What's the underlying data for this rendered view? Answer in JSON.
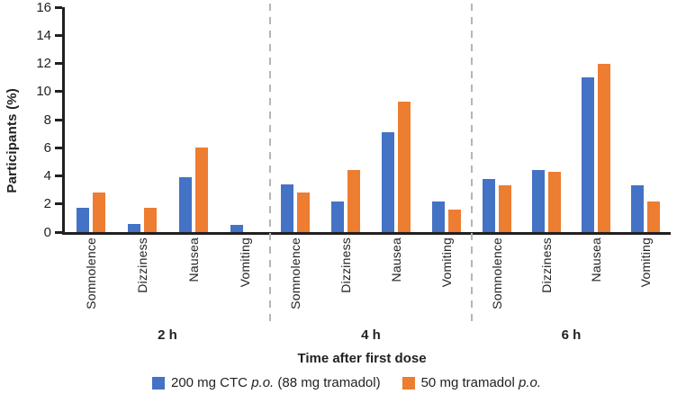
{
  "chart_data": {
    "type": "bar",
    "title": "",
    "ylabel": "Participants (%)",
    "xlabel": "Time after first dose",
    "ylim": [
      0,
      16
    ],
    "y_ticks": [
      0,
      2,
      4,
      6,
      8,
      10,
      12,
      14,
      16
    ],
    "grid": false,
    "legend_position": "bottom",
    "categories": [
      "Somnolence",
      "Dizziness",
      "Nausea",
      "Vomiting"
    ],
    "series_names": [
      "200 mg CTC p.o. (88 mg tramadol)",
      "50 mg tramadol p.o."
    ],
    "series_colors": [
      "#4472c4",
      "#ed7d31"
    ],
    "groups": [
      {
        "label": "2 h",
        "series": [
          {
            "name": "200 mg CTC p.o. (88 mg tramadol)",
            "values": [
              1.7,
              0.6,
              3.9,
              0.5
            ]
          },
          {
            "name": "50 mg tramadol p.o.",
            "values": [
              2.8,
              1.7,
              6.0,
              0
            ]
          }
        ]
      },
      {
        "label": "4 h",
        "series": [
          {
            "name": "200 mg CTC p.o. (88 mg tramadol)",
            "values": [
              3.4,
              2.2,
              7.1,
              2.2
            ]
          },
          {
            "name": "50 mg tramadol p.o.",
            "values": [
              2.8,
              4.4,
              9.3,
              1.6
            ]
          }
        ]
      },
      {
        "label": "6 h",
        "series": [
          {
            "name": "200 mg CTC p.o. (88 mg tramadol)",
            "values": [
              3.8,
              4.4,
              11.0,
              3.3
            ]
          },
          {
            "name": "50 mg tramadol p.o.",
            "values": [
              3.3,
              4.3,
              12.0,
              2.2
            ]
          }
        ]
      }
    ],
    "legend": [
      {
        "color": "#4472c4",
        "parts": [
          {
            "t": "200 mg CTC ",
            "i": false
          },
          {
            "t": "p.o.",
            "i": true
          },
          {
            "t": " (88 mg tramadol)",
            "i": false
          }
        ]
      },
      {
        "color": "#ed7d31",
        "parts": [
          {
            "t": "50 mg tramadol ",
            "i": false
          },
          {
            "t": "p.o.",
            "i": true
          }
        ]
      }
    ]
  },
  "style": {
    "axis_color": "#231f20",
    "separator_color": "#b5b5b5",
    "background": "#ffffff"
  }
}
